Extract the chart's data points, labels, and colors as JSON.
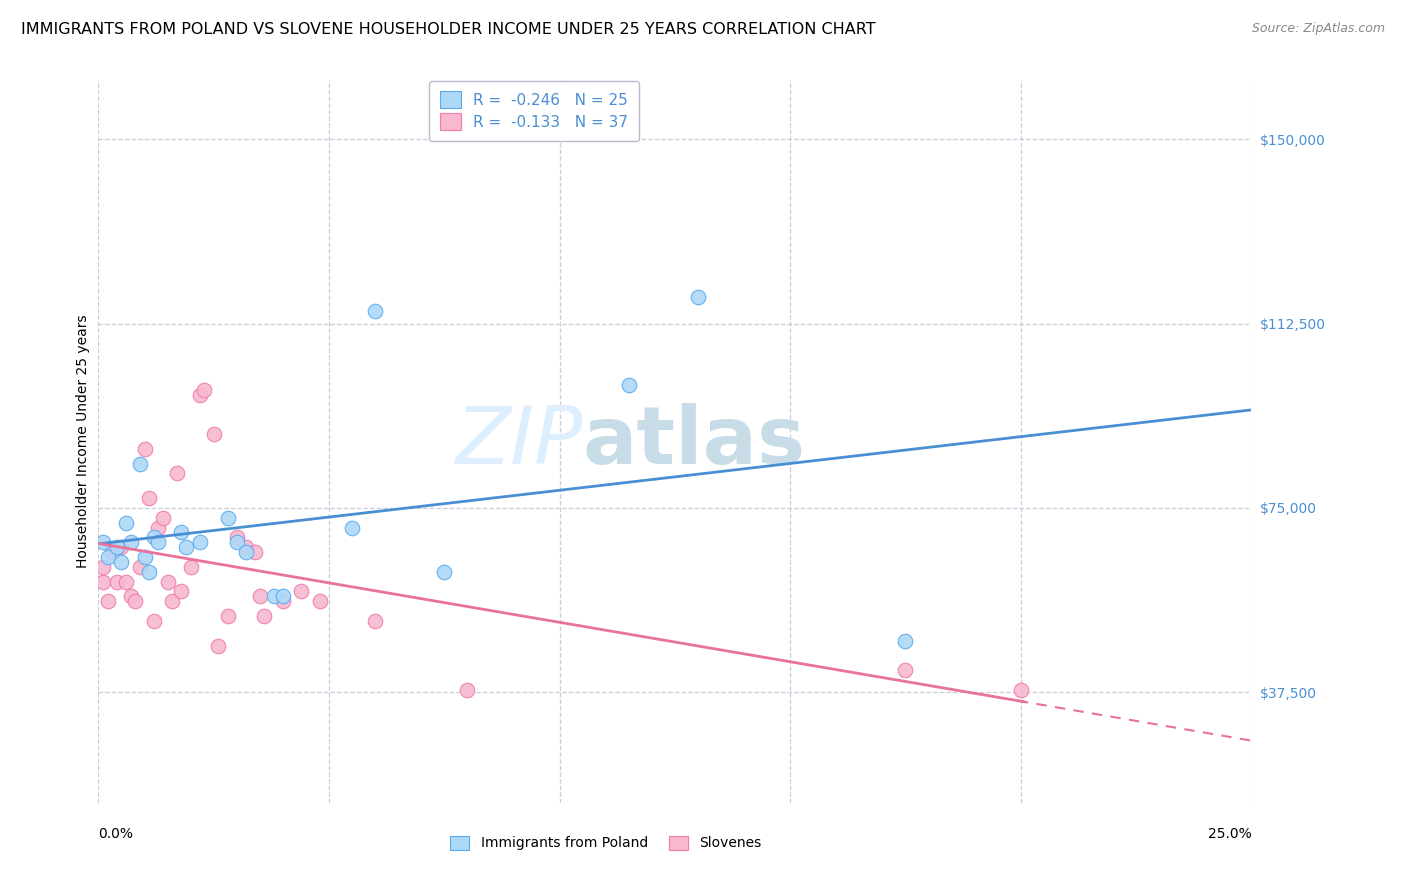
{
  "title": "IMMIGRANTS FROM POLAND VS SLOVENE HOUSEHOLDER INCOME UNDER 25 YEARS CORRELATION CHART",
  "source": "Source: ZipAtlas.com",
  "ylabel": "Householder Income Under 25 years",
  "xlim": [
    0.0,
    0.25
  ],
  "ylim": [
    15000,
    162000
  ],
  "legend_entries": [
    {
      "label": "R =  -0.246   N = 25",
      "facecolor": "#add8f7",
      "edgecolor": "#5aabf0"
    },
    {
      "label": "R =  -0.133   N = 37",
      "facecolor": "#f7b8d0",
      "edgecolor": "#f07aaa"
    }
  ],
  "blue_scatter": [
    [
      0.001,
      68000
    ],
    [
      0.002,
      65000
    ],
    [
      0.004,
      67000
    ],
    [
      0.005,
      64000
    ],
    [
      0.006,
      72000
    ],
    [
      0.007,
      68000
    ],
    [
      0.009,
      84000
    ],
    [
      0.01,
      65000
    ],
    [
      0.011,
      62000
    ],
    [
      0.012,
      69000
    ],
    [
      0.013,
      68000
    ],
    [
      0.018,
      70000
    ],
    [
      0.019,
      67000
    ],
    [
      0.022,
      68000
    ],
    [
      0.028,
      73000
    ],
    [
      0.03,
      68000
    ],
    [
      0.032,
      66000
    ],
    [
      0.038,
      57000
    ],
    [
      0.04,
      57000
    ],
    [
      0.055,
      71000
    ],
    [
      0.06,
      115000
    ],
    [
      0.075,
      62000
    ],
    [
      0.115,
      100000
    ],
    [
      0.13,
      118000
    ],
    [
      0.175,
      48000
    ]
  ],
  "pink_scatter": [
    [
      0.001,
      63000
    ],
    [
      0.001,
      60000
    ],
    [
      0.002,
      56000
    ],
    [
      0.003,
      66000
    ],
    [
      0.004,
      60000
    ],
    [
      0.005,
      67000
    ],
    [
      0.006,
      60000
    ],
    [
      0.007,
      57000
    ],
    [
      0.008,
      56000
    ],
    [
      0.009,
      63000
    ],
    [
      0.01,
      87000
    ],
    [
      0.011,
      77000
    ],
    [
      0.012,
      52000
    ],
    [
      0.013,
      71000
    ],
    [
      0.014,
      73000
    ],
    [
      0.015,
      60000
    ],
    [
      0.016,
      56000
    ],
    [
      0.017,
      82000
    ],
    [
      0.018,
      58000
    ],
    [
      0.02,
      63000
    ],
    [
      0.022,
      98000
    ],
    [
      0.023,
      99000
    ],
    [
      0.025,
      90000
    ],
    [
      0.026,
      47000
    ],
    [
      0.028,
      53000
    ],
    [
      0.03,
      69000
    ],
    [
      0.032,
      67000
    ],
    [
      0.034,
      66000
    ],
    [
      0.035,
      57000
    ],
    [
      0.036,
      53000
    ],
    [
      0.04,
      56000
    ],
    [
      0.044,
      58000
    ],
    [
      0.048,
      56000
    ],
    [
      0.06,
      52000
    ],
    [
      0.08,
      38000
    ],
    [
      0.175,
      42000
    ],
    [
      0.2,
      38000
    ]
  ],
  "blue_line_color": "#4a8fd4",
  "pink_line_color": "#e8729a",
  "scatter_blue_facecolor": "#add8f7",
  "scatter_blue_edgecolor": "#5aabf0",
  "scatter_pink_facecolor": "#f7b8d0",
  "scatter_pink_edgecolor": "#f07aaa",
  "grid_color": "#ccccdd",
  "background_color": "#ffffff",
  "watermark_zip": "ZIP",
  "watermark_atlas": "atlas",
  "watermark_color": "#ddeeff",
  "ytick_vals": [
    37500,
    75000,
    112500,
    150000
  ],
  "ytick_labels": [
    "$37,500",
    "$75,000",
    "$112,500",
    "$150,000"
  ],
  "xtick_vals": [
    0.0,
    0.05,
    0.1,
    0.15,
    0.2,
    0.25
  ],
  "title_fontsize": 11.5,
  "axis_label_fontsize": 10,
  "tick_fontsize": 10,
  "legend_fontsize": 11,
  "scatter_size": 110
}
